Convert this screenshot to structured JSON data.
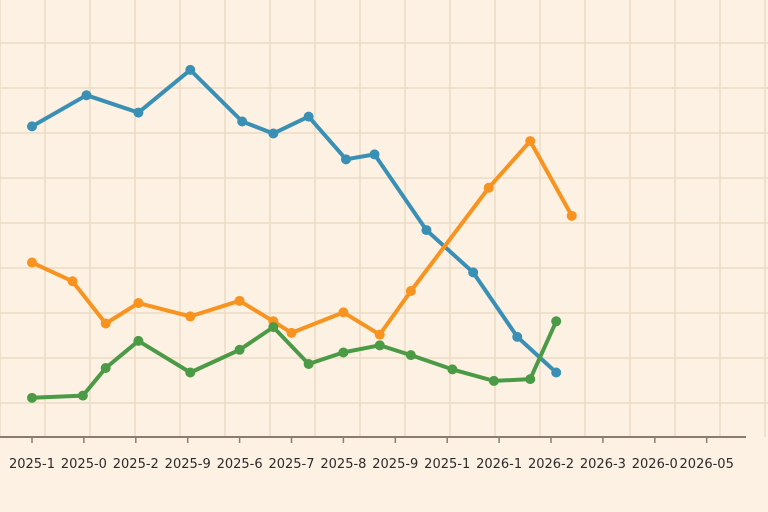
{
  "chart_data": {
    "type": "line",
    "title": "",
    "xlabel": "",
    "ylabel": "",
    "grid": true,
    "legend": "none",
    "categories": [
      "2025-1",
      "2025-0",
      "2025-2",
      "2025-9",
      "2025-6",
      "2025-7",
      "2025-8",
      "2025-9",
      "2025-1",
      "2026-1",
      "2026-2",
      "2026-3",
      "2026-0",
      "2026-05"
    ],
    "ylim": [
      0,
      9
    ],
    "series": [
      {
        "color": "#3a8fb5",
        "values": [
          [
            0,
            6.98
          ],
          [
            1.05,
            7.68
          ],
          [
            2.05,
            7.29
          ],
          [
            3.05,
            8.25
          ],
          [
            4.05,
            7.09
          ],
          [
            4.65,
            6.82
          ],
          [
            5.33,
            7.2
          ],
          [
            6.05,
            6.24
          ],
          [
            6.6,
            6.35
          ],
          [
            7.6,
            4.65
          ],
          [
            8.5,
            3.7
          ],
          [
            9.35,
            2.25
          ],
          [
            10.1,
            1.45
          ]
        ]
      },
      {
        "color": "#f7931e",
        "values": [
          [
            0,
            3.92
          ],
          [
            0.78,
            3.5
          ],
          [
            1.42,
            2.55
          ],
          [
            2.05,
            3.01
          ],
          [
            3.05,
            2.71
          ],
          [
            4.0,
            3.06
          ],
          [
            4.65,
            2.6
          ],
          [
            5.0,
            2.34
          ],
          [
            6.0,
            2.8
          ],
          [
            6.7,
            2.3
          ],
          [
            7.3,
            3.28
          ],
          [
            8.8,
            5.6
          ],
          [
            9.6,
            6.65
          ],
          [
            10.4,
            4.97
          ]
        ]
      },
      {
        "color": "#4a9a46",
        "values": [
          [
            0,
            0.88
          ],
          [
            0.98,
            0.93
          ],
          [
            1.42,
            1.55
          ],
          [
            2.05,
            2.16
          ],
          [
            3.05,
            1.45
          ],
          [
            4.0,
            1.96
          ],
          [
            4.65,
            2.47
          ],
          [
            5.33,
            1.64
          ],
          [
            6.0,
            1.9
          ],
          [
            6.7,
            2.06
          ],
          [
            7.3,
            1.84
          ],
          [
            8.1,
            1.52
          ],
          [
            8.9,
            1.26
          ],
          [
            9.6,
            1.3
          ],
          [
            10.1,
            2.6
          ]
        ]
      }
    ]
  }
}
